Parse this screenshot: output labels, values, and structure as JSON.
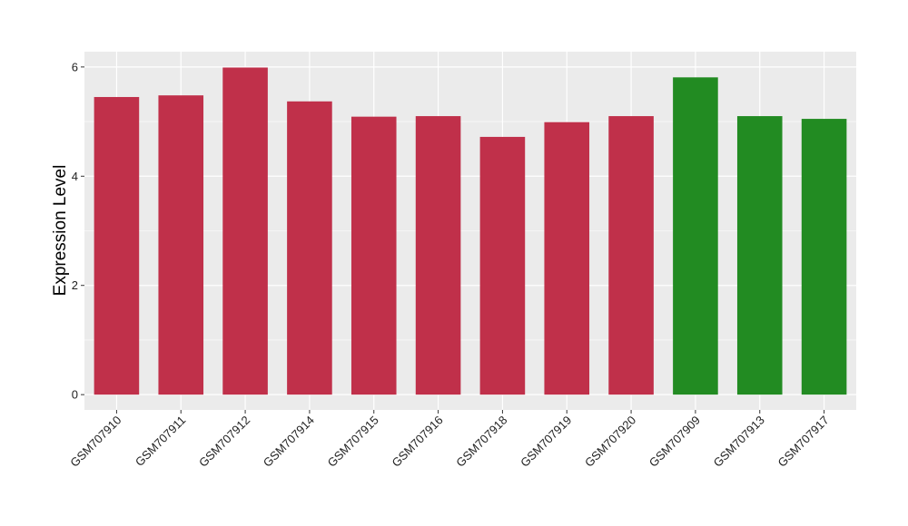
{
  "chart_data": {
    "type": "bar",
    "title": "",
    "xlabel": "",
    "ylabel": "Expression Level",
    "categories": [
      "GSM707910",
      "GSM707911",
      "GSM707912",
      "GSM707914",
      "GSM707915",
      "GSM707916",
      "GSM707918",
      "GSM707919",
      "GSM707920",
      "GSM707909",
      "GSM707913",
      "GSM707917"
    ],
    "values": [
      5.45,
      5.48,
      5.99,
      5.37,
      5.09,
      5.1,
      4.72,
      4.99,
      5.1,
      5.81,
      5.1,
      5.05
    ],
    "bar_colors": [
      "#c0304a",
      "#c0304a",
      "#c0304a",
      "#c0304a",
      "#c0304a",
      "#c0304a",
      "#c0304a",
      "#c0304a",
      "#c0304a",
      "#228b22",
      "#228b22",
      "#228b22"
    ],
    "y_ticks": [
      "0",
      "2",
      "4",
      "6"
    ],
    "ylim": [
      -0.28,
      6.28
    ],
    "grid": true,
    "legend": false,
    "panel_background": "#ebebeb",
    "grid_color": "#ffffff"
  }
}
